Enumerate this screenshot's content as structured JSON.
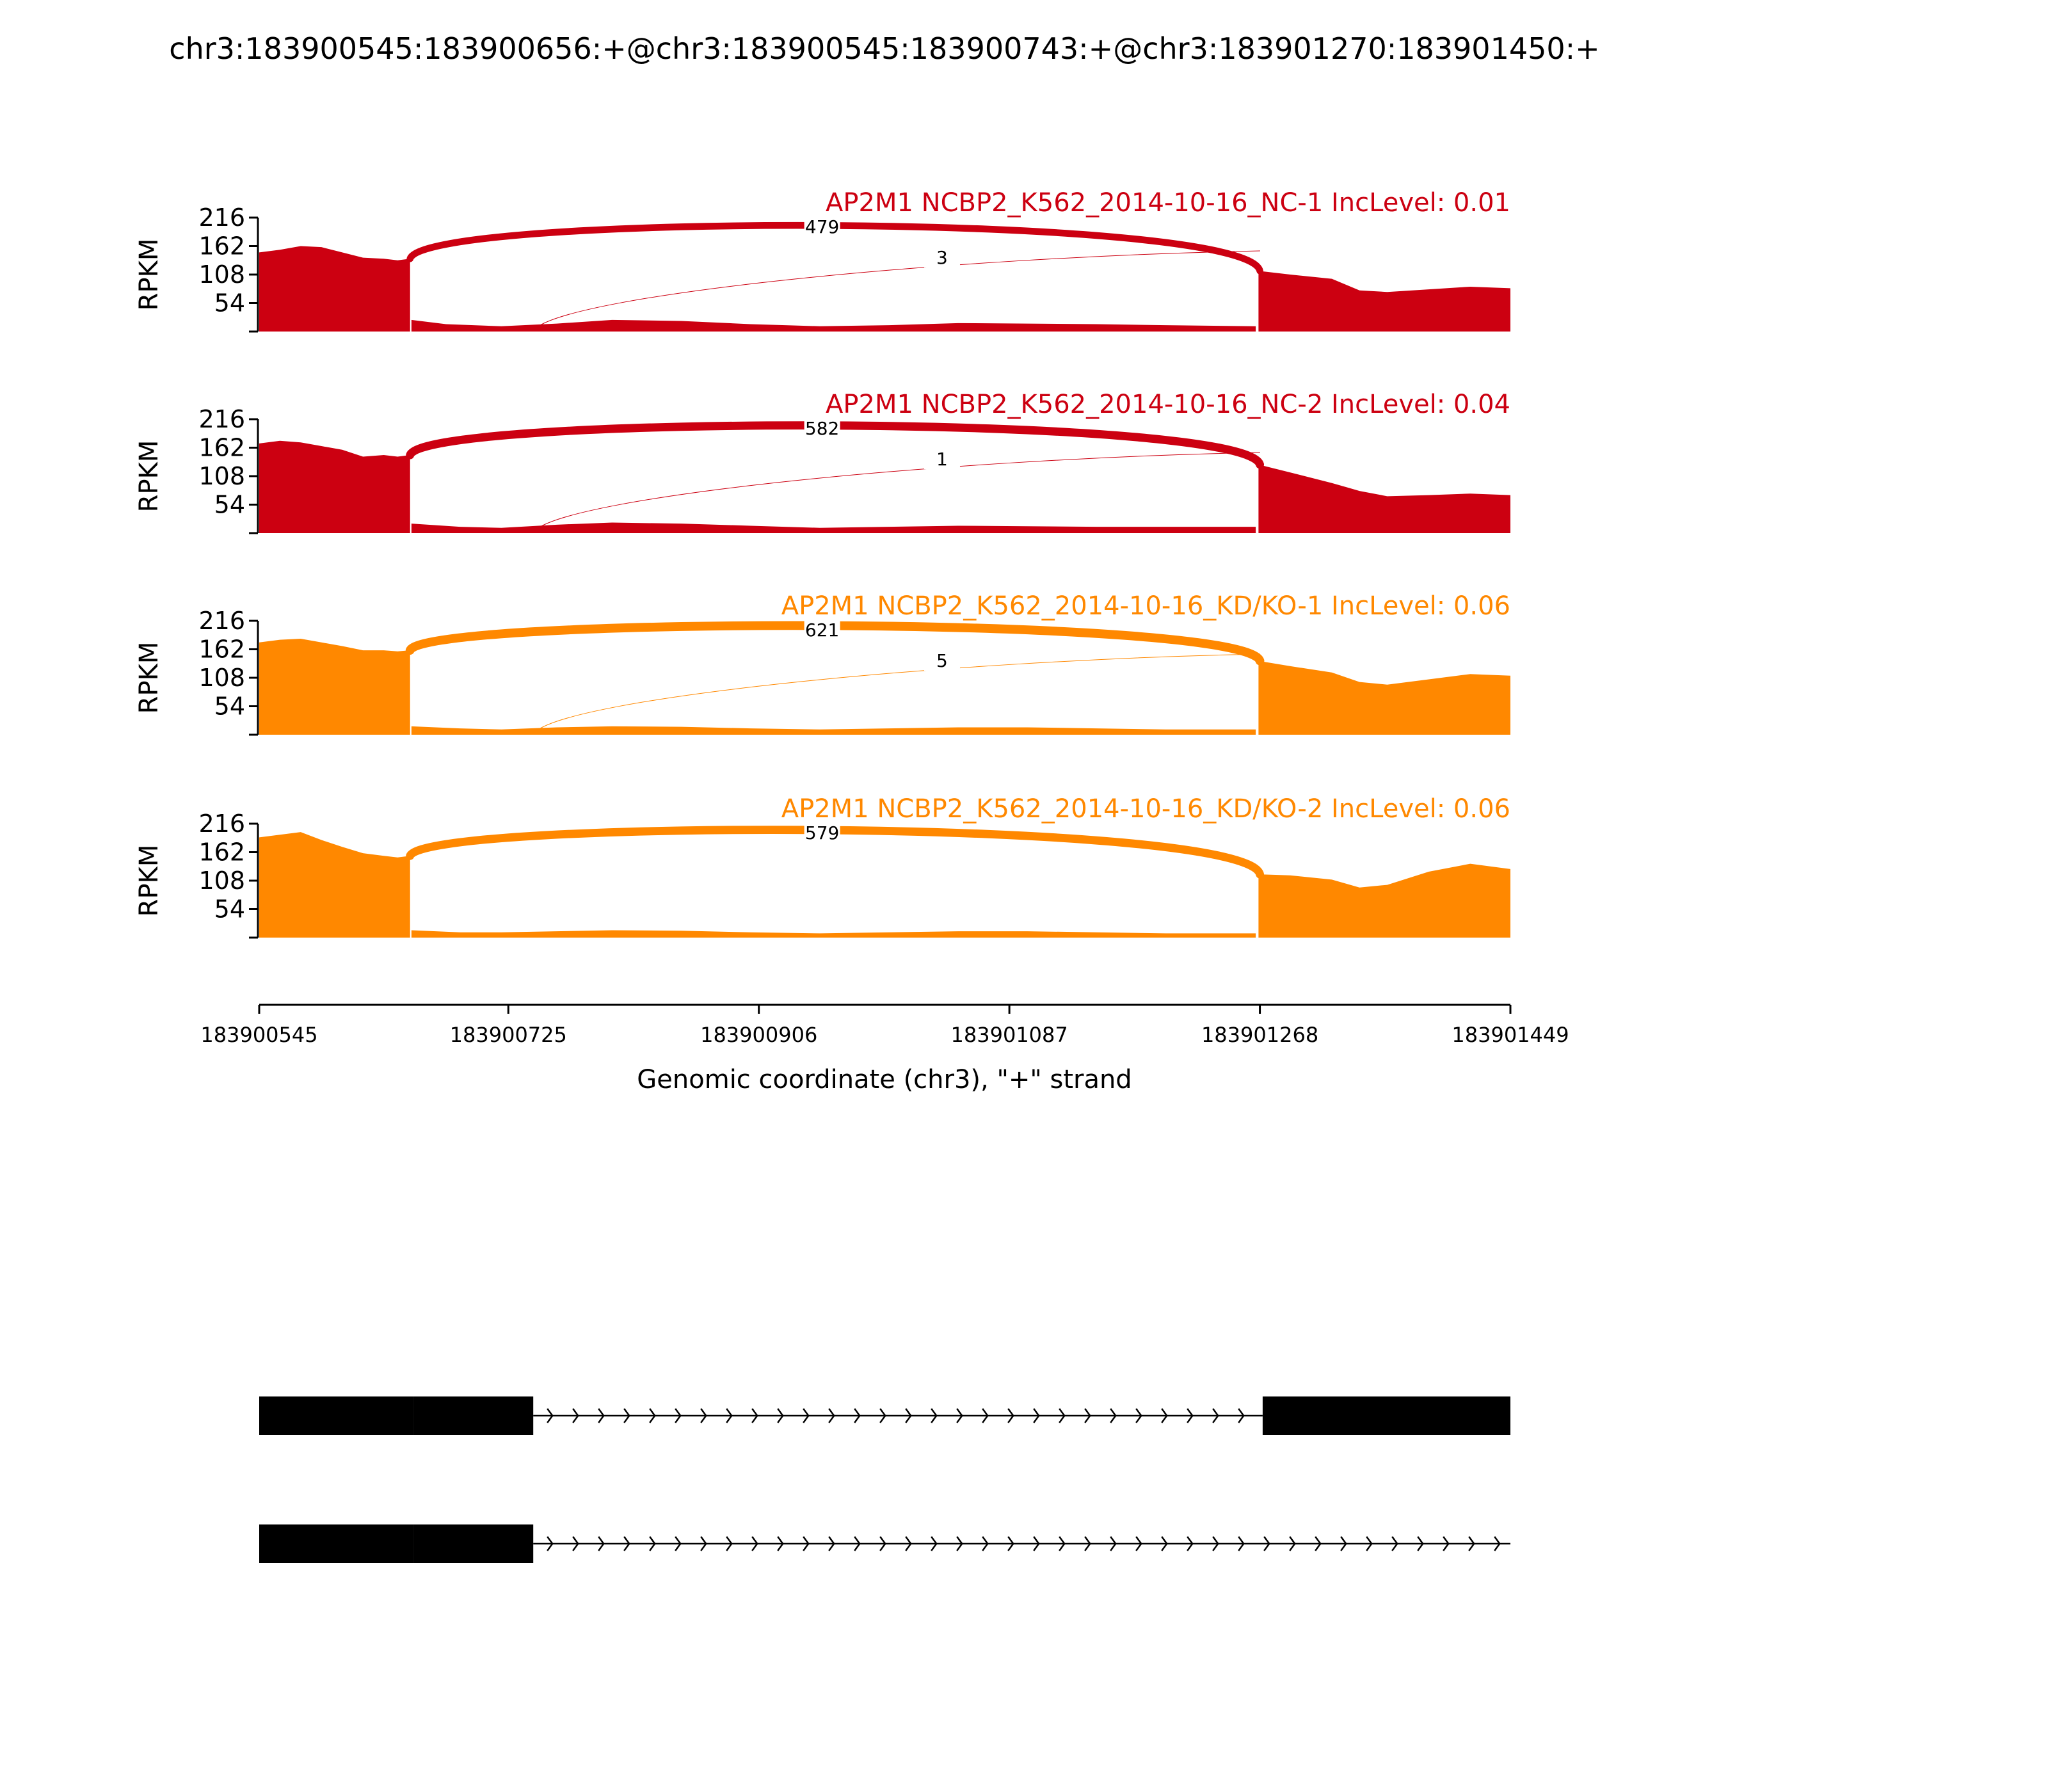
{
  "title": "chr3:183900545:183900656:+@chr3:183900545:183900743:+@chr3:183901270:183901450:+",
  "chart_data": {
    "type": "area",
    "title": "chr3:183900545:183900656:+@chr3:183900545:183900743:+@chr3:183901270:183901450:+",
    "xlabel": "Genomic coordinate (chr3), \"+\" strand",
    "ylabel": "RPKM",
    "xlim": [
      183900545,
      183901449
    ],
    "ylim": [
      0,
      216
    ],
    "x_ticks": [
      "183900545",
      "183900725",
      "183900906",
      "183901087",
      "183901268",
      "183901449"
    ],
    "x_tick_values": [
      183900545,
      183900725,
      183900906,
      183901087,
      183901268,
      183901449
    ],
    "y_ticks": [
      "54",
      "108",
      "162",
      "216"
    ],
    "y_tick_values": [
      54,
      108,
      162,
      216
    ],
    "panels": [
      {
        "label": "AP2M1 NCBP2_K562_2014-10-16_NC-1 IncLevel: 0.01",
        "color": "#CC0011",
        "coverage": {
          "exon1": [
            [
              183900545,
              150
            ],
            [
              183900560,
              155
            ],
            [
              183900575,
              162
            ],
            [
              183900590,
              160
            ],
            [
              183900605,
              150
            ],
            [
              183900620,
              140
            ],
            [
              183900635,
              138
            ],
            [
              183900645,
              135
            ],
            [
              183900654,
              138
            ]
          ],
          "intron": [
            [
              183900655,
              22
            ],
            [
              183900680,
              14
            ],
            [
              183900720,
              10
            ],
            [
              183900760,
              15
            ],
            [
              183900800,
              22
            ],
            [
              183900850,
              20
            ],
            [
              183900900,
              14
            ],
            [
              183900950,
              10
            ],
            [
              183901000,
              12
            ],
            [
              183901050,
              16
            ],
            [
              183901100,
              15
            ],
            [
              183901150,
              14
            ],
            [
              183901200,
              12
            ],
            [
              183901265,
              10
            ]
          ],
          "exon2": [
            [
              183901267,
              115
            ],
            [
              183901290,
              108
            ],
            [
              183901320,
              100
            ],
            [
              183901340,
              78
            ],
            [
              183901360,
              75
            ],
            [
              183901390,
              80
            ],
            [
              183901420,
              85
            ],
            [
              183901449,
              82
            ]
          ]
        },
        "junctions": [
          {
            "from": 183900654,
            "to": 183901268,
            "reads": "479",
            "weight": 479
          },
          {
            "from": 183900744,
            "to": 183901268,
            "reads": "3",
            "weight": 3
          }
        ]
      },
      {
        "label": "AP2M1 NCBP2_K562_2014-10-16_NC-2 IncLevel: 0.04",
        "color": "#CC0011",
        "coverage": {
          "exon1": [
            [
              183900545,
              170
            ],
            [
              183900560,
              175
            ],
            [
              183900575,
              172
            ],
            [
              183900590,
              165
            ],
            [
              183900605,
              158
            ],
            [
              183900620,
              145
            ],
            [
              183900635,
              148
            ],
            [
              183900645,
              145
            ],
            [
              183900654,
              148
            ]
          ],
          "intron": [
            [
              183900655,
              18
            ],
            [
              183900690,
              12
            ],
            [
              183900720,
              10
            ],
            [
              183900760,
              16
            ],
            [
              183900800,
              20
            ],
            [
              183900850,
              18
            ],
            [
              183900900,
              14
            ],
            [
              183900950,
              10
            ],
            [
              183901000,
              12
            ],
            [
              183901050,
              14
            ],
            [
              183901100,
              13
            ],
            [
              183901150,
              12
            ],
            [
              183901200,
              12
            ],
            [
              183901265,
              12
            ]
          ],
          "exon2": [
            [
              183901267,
              130
            ],
            [
              183901290,
              115
            ],
            [
              183901320,
              95
            ],
            [
              183901340,
              80
            ],
            [
              183901360,
              70
            ],
            [
              183901390,
              72
            ],
            [
              183901420,
              75
            ],
            [
              183901449,
              72
            ]
          ]
        },
        "junctions": [
          {
            "from": 183900654,
            "to": 183901268,
            "reads": "582",
            "weight": 582
          },
          {
            "from": 183900744,
            "to": 183901268,
            "reads": "1",
            "weight": 1
          }
        ]
      },
      {
        "label": "AP2M1 NCBP2_K562_2014-10-16_KD/KO-1 IncLevel: 0.06",
        "color": "#FF8800",
        "coverage": {
          "exon1": [
            [
              183900545,
              175
            ],
            [
              183900560,
              180
            ],
            [
              183900575,
              182
            ],
            [
              183900590,
              175
            ],
            [
              183900605,
              168
            ],
            [
              183900620,
              160
            ],
            [
              183900635,
              160
            ],
            [
              183900645,
              158
            ],
            [
              183900654,
              160
            ]
          ],
          "intron": [
            [
              183900655,
              16
            ],
            [
              183900690,
              12
            ],
            [
              183900720,
              10
            ],
            [
              183900760,
              14
            ],
            [
              183900800,
              16
            ],
            [
              183900850,
              15
            ],
            [
              183900900,
              12
            ],
            [
              183900950,
              10
            ],
            [
              183901000,
              12
            ],
            [
              183901050,
              14
            ],
            [
              183901100,
              14
            ],
            [
              183901150,
              12
            ],
            [
              183901200,
              10
            ],
            [
              183901265,
              10
            ]
          ],
          "exon2": [
            [
              183901267,
              140
            ],
            [
              183901290,
              130
            ],
            [
              183901320,
              118
            ],
            [
              183901340,
              100
            ],
            [
              183901360,
              95
            ],
            [
              183901390,
              105
            ],
            [
              183901420,
              115
            ],
            [
              183901449,
              112
            ]
          ]
        },
        "junctions": [
          {
            "from": 183900654,
            "to": 183901268,
            "reads": "621",
            "weight": 621
          },
          {
            "from": 183900744,
            "to": 183901268,
            "reads": "5",
            "weight": 5
          }
        ]
      },
      {
        "label": "AP2M1 NCBP2_K562_2014-10-16_KD/KO-2 IncLevel: 0.06",
        "color": "#FF8800",
        "coverage": {
          "exon1": [
            [
              183900545,
              190
            ],
            [
              183900560,
              195
            ],
            [
              183900575,
              200
            ],
            [
              183900590,
              185
            ],
            [
              183900605,
              172
            ],
            [
              183900620,
              160
            ],
            [
              183900635,
              155
            ],
            [
              183900645,
              152
            ],
            [
              183900654,
              155
            ]
          ],
          "intron": [
            [
              183900655,
              14
            ],
            [
              183900690,
              10
            ],
            [
              183900720,
              10
            ],
            [
              183900760,
              12
            ],
            [
              183900800,
              14
            ],
            [
              183900850,
              13
            ],
            [
              183900900,
              10
            ],
            [
              183900950,
              8
            ],
            [
              183901000,
              10
            ],
            [
              183901050,
              12
            ],
            [
              183901100,
              12
            ],
            [
              183901150,
              10
            ],
            [
              183901200,
              8
            ],
            [
              183901265,
              8
            ]
          ],
          "exon2": [
            [
              183901267,
              120
            ],
            [
              183901290,
              118
            ],
            [
              183901320,
              110
            ],
            [
              183901340,
              95
            ],
            [
              183901360,
              100
            ],
            [
              183901390,
              125
            ],
            [
              183901420,
              140
            ],
            [
              183901449,
              130
            ]
          ]
        },
        "junctions": [
          {
            "from": 183900654,
            "to": 183901268,
            "reads": "579",
            "weight": 579
          }
        ]
      }
    ],
    "transcripts": [
      {
        "exons": [
          [
            183900545,
            183900656
          ],
          [
            183900656,
            183900743
          ],
          [
            183901270,
            183901449
          ]
        ],
        "line_end": 183901270
      },
      {
        "exons": [
          [
            183900545,
            183900656
          ],
          [
            183900656,
            183900743
          ]
        ],
        "line_end": 183901449
      }
    ]
  }
}
